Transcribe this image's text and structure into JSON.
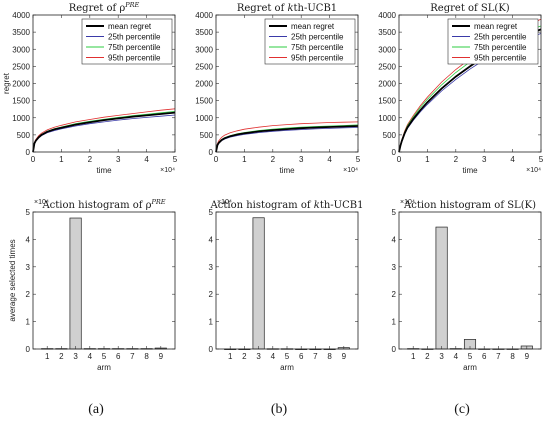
{
  "captions": [
    "(a)",
    "(b)",
    "(c)"
  ],
  "chart_data": [
    {
      "type": "line",
      "title": "Regret of ρ^PRE",
      "title_main": "Regret of ρ",
      "title_sup": "PRE",
      "xlabel": "time",
      "ylabel": "regret",
      "xlim": [
        0,
        50000
      ],
      "ylim": [
        0,
        4000
      ],
      "x_ticks": [
        "0",
        "1",
        "2",
        "3",
        "4",
        "5"
      ],
      "y_ticks": [
        "0",
        "500",
        "1000",
        "1500",
        "2000",
        "2500",
        "3000",
        "3500",
        "4000"
      ],
      "x_exponent": "×10⁴",
      "legend_position": "top-right",
      "x": [
        0,
        500,
        1000,
        2000,
        3000,
        5000,
        7500,
        10000,
        15000,
        20000,
        25000,
        30000,
        35000,
        40000,
        45000,
        50000
      ],
      "series": [
        {
          "name": "mean regret",
          "color": "#000000",
          "values": [
            0,
            250,
            330,
            430,
            500,
            590,
            660,
            710,
            800,
            870,
            930,
            980,
            1030,
            1070,
            1110,
            1150
          ]
        },
        {
          "name": "25th percentile",
          "color": "#3a3aa8",
          "values": [
            0,
            240,
            315,
            410,
            475,
            560,
            625,
            675,
            760,
            825,
            880,
            930,
            975,
            1010,
            1045,
            1080
          ]
        },
        {
          "name": "75th percentile",
          "color": "#2ecc40",
          "values": [
            0,
            260,
            340,
            445,
            515,
            605,
            680,
            730,
            825,
            895,
            955,
            1010,
            1060,
            1100,
            1145,
            1185
          ]
        },
        {
          "name": "95th percentile",
          "color": "#e03030",
          "values": [
            0,
            280,
            365,
            475,
            550,
            645,
            725,
            780,
            880,
            950,
            1015,
            1070,
            1120,
            1170,
            1220,
            1260
          ]
        }
      ]
    },
    {
      "type": "line",
      "title": "Regret of kth-UCB1",
      "title_main": "Regret of ",
      "title_italic": "k",
      "title_rest": "th-UCB1",
      "xlabel": "time",
      "ylabel": "",
      "xlim": [
        0,
        50000
      ],
      "ylim": [
        0,
        4000
      ],
      "x_ticks": [
        "0",
        "1",
        "2",
        "3",
        "4",
        "5"
      ],
      "y_ticks": [
        "0",
        "500",
        "1000",
        "1500",
        "2000",
        "2500",
        "3000",
        "3500",
        "4000"
      ],
      "x_exponent": "×10⁴",
      "legend_position": "top-right",
      "x": [
        0,
        500,
        1000,
        2000,
        3000,
        5000,
        7500,
        10000,
        15000,
        20000,
        25000,
        30000,
        35000,
        40000,
        45000,
        50000
      ],
      "series": [
        {
          "name": "mean regret",
          "color": "#000000",
          "values": [
            0,
            200,
            270,
            350,
            400,
            460,
            510,
            545,
            600,
            640,
            670,
            695,
            715,
            730,
            745,
            760
          ]
        },
        {
          "name": "25th percentile",
          "color": "#3a3aa8",
          "values": [
            0,
            190,
            255,
            330,
            378,
            435,
            480,
            515,
            565,
            605,
            632,
            655,
            675,
            690,
            703,
            715
          ]
        },
        {
          "name": "75th percentile",
          "color": "#2ecc40",
          "values": [
            0,
            210,
            282,
            365,
            418,
            480,
            532,
            570,
            628,
            668,
            700,
            725,
            745,
            760,
            775,
            790
          ]
        },
        {
          "name": "95th percentile",
          "color": "#e03030",
          "values": [
            0,
            245,
            330,
            430,
            490,
            560,
            620,
            665,
            725,
            770,
            800,
            825,
            845,
            860,
            870,
            880
          ]
        }
      ]
    },
    {
      "type": "line",
      "title": "Regret of SL(K)",
      "title_main": "Regret of SL(K)",
      "xlabel": "time",
      "ylabel": "",
      "xlim": [
        0,
        50000
      ],
      "ylim": [
        0,
        4000
      ],
      "x_ticks": [
        "0",
        "1",
        "2",
        "3",
        "4",
        "5"
      ],
      "y_ticks": [
        "0",
        "500",
        "1000",
        "1500",
        "2000",
        "2500",
        "3000",
        "3500",
        "4000"
      ],
      "x_exponent": "×10⁴",
      "legend_position": "top-right",
      "x": [
        0,
        500,
        1000,
        2000,
        3000,
        5000,
        7500,
        10000,
        15000,
        20000,
        25000,
        30000,
        35000,
        40000,
        45000,
        50000
      ],
      "series": [
        {
          "name": "mean regret",
          "color": "#000000",
          "values": [
            0,
            180,
            320,
            550,
            720,
            960,
            1220,
            1450,
            1850,
            2200,
            2500,
            2780,
            3030,
            3250,
            3430,
            3580
          ]
        },
        {
          "name": "25th percentile",
          "color": "#3a3aa8",
          "values": [
            0,
            170,
            300,
            520,
            690,
            920,
            1170,
            1390,
            1780,
            2120,
            2420,
            2690,
            2930,
            3140,
            3320,
            3460
          ]
        },
        {
          "name": "75th percentile",
          "color": "#2ecc40",
          "values": [
            0,
            195,
            345,
            590,
            770,
            1020,
            1300,
            1540,
            1960,
            2320,
            2630,
            2900,
            3150,
            3360,
            3540,
            3680
          ]
        },
        {
          "name": "95th percentile",
          "color": "#e03030",
          "values": [
            0,
            205,
            360,
            615,
            800,
            1060,
            1350,
            1600,
            2040,
            2410,
            2720,
            3000,
            3260,
            3480,
            3680,
            3880
          ]
        }
      ]
    },
    {
      "type": "bar",
      "title": "Action histogram of ρ^PRE",
      "title_main": "Action histogram of ρ",
      "title_sup": "PRE",
      "xlabel": "arm",
      "ylabel": "average selected times",
      "ylim": [
        0,
        50000
      ],
      "categories": [
        "1",
        "2",
        "3",
        "4",
        "5",
        "6",
        "7",
        "8",
        "9"
      ],
      "values": [
        150,
        150,
        47800,
        150,
        150,
        150,
        150,
        150,
        350
      ],
      "y_ticks": [
        "0",
        "1",
        "2",
        "3",
        "4",
        "5"
      ],
      "y_exponent": "×10⁴",
      "bar_color": "#d0d0d0"
    },
    {
      "type": "bar",
      "title": "Action histogram of kth-UCB1",
      "title_main": "Action histogram of ",
      "title_italic": "k",
      "title_rest": "th-UCB1",
      "xlabel": "arm",
      "ylabel": "",
      "ylim": [
        0,
        50000
      ],
      "categories": [
        "1",
        "2",
        "3",
        "4",
        "5",
        "6",
        "7",
        "8",
        "9"
      ],
      "values": [
        0,
        0,
        47900,
        100,
        100,
        0,
        0,
        0,
        500
      ],
      "y_ticks": [
        "0",
        "1",
        "2",
        "3",
        "4",
        "5"
      ],
      "y_exponent": "×10⁴",
      "bar_color": "#d0d0d0"
    },
    {
      "type": "bar",
      "title": "Action histogram of SL(K)",
      "title_main": "Action histogram of SL(K)",
      "xlabel": "arm",
      "ylabel": "",
      "ylim": [
        0,
        50000
      ],
      "categories": [
        "1",
        "2",
        "3",
        "4",
        "5",
        "6",
        "7",
        "8",
        "9"
      ],
      "values": [
        150,
        50,
        44500,
        150,
        3500,
        50,
        50,
        50,
        1100
      ],
      "y_ticks": [
        "0",
        "1",
        "2",
        "3",
        "4",
        "5"
      ],
      "y_exponent": "×10⁴",
      "bar_color": "#d0d0d0"
    }
  ]
}
